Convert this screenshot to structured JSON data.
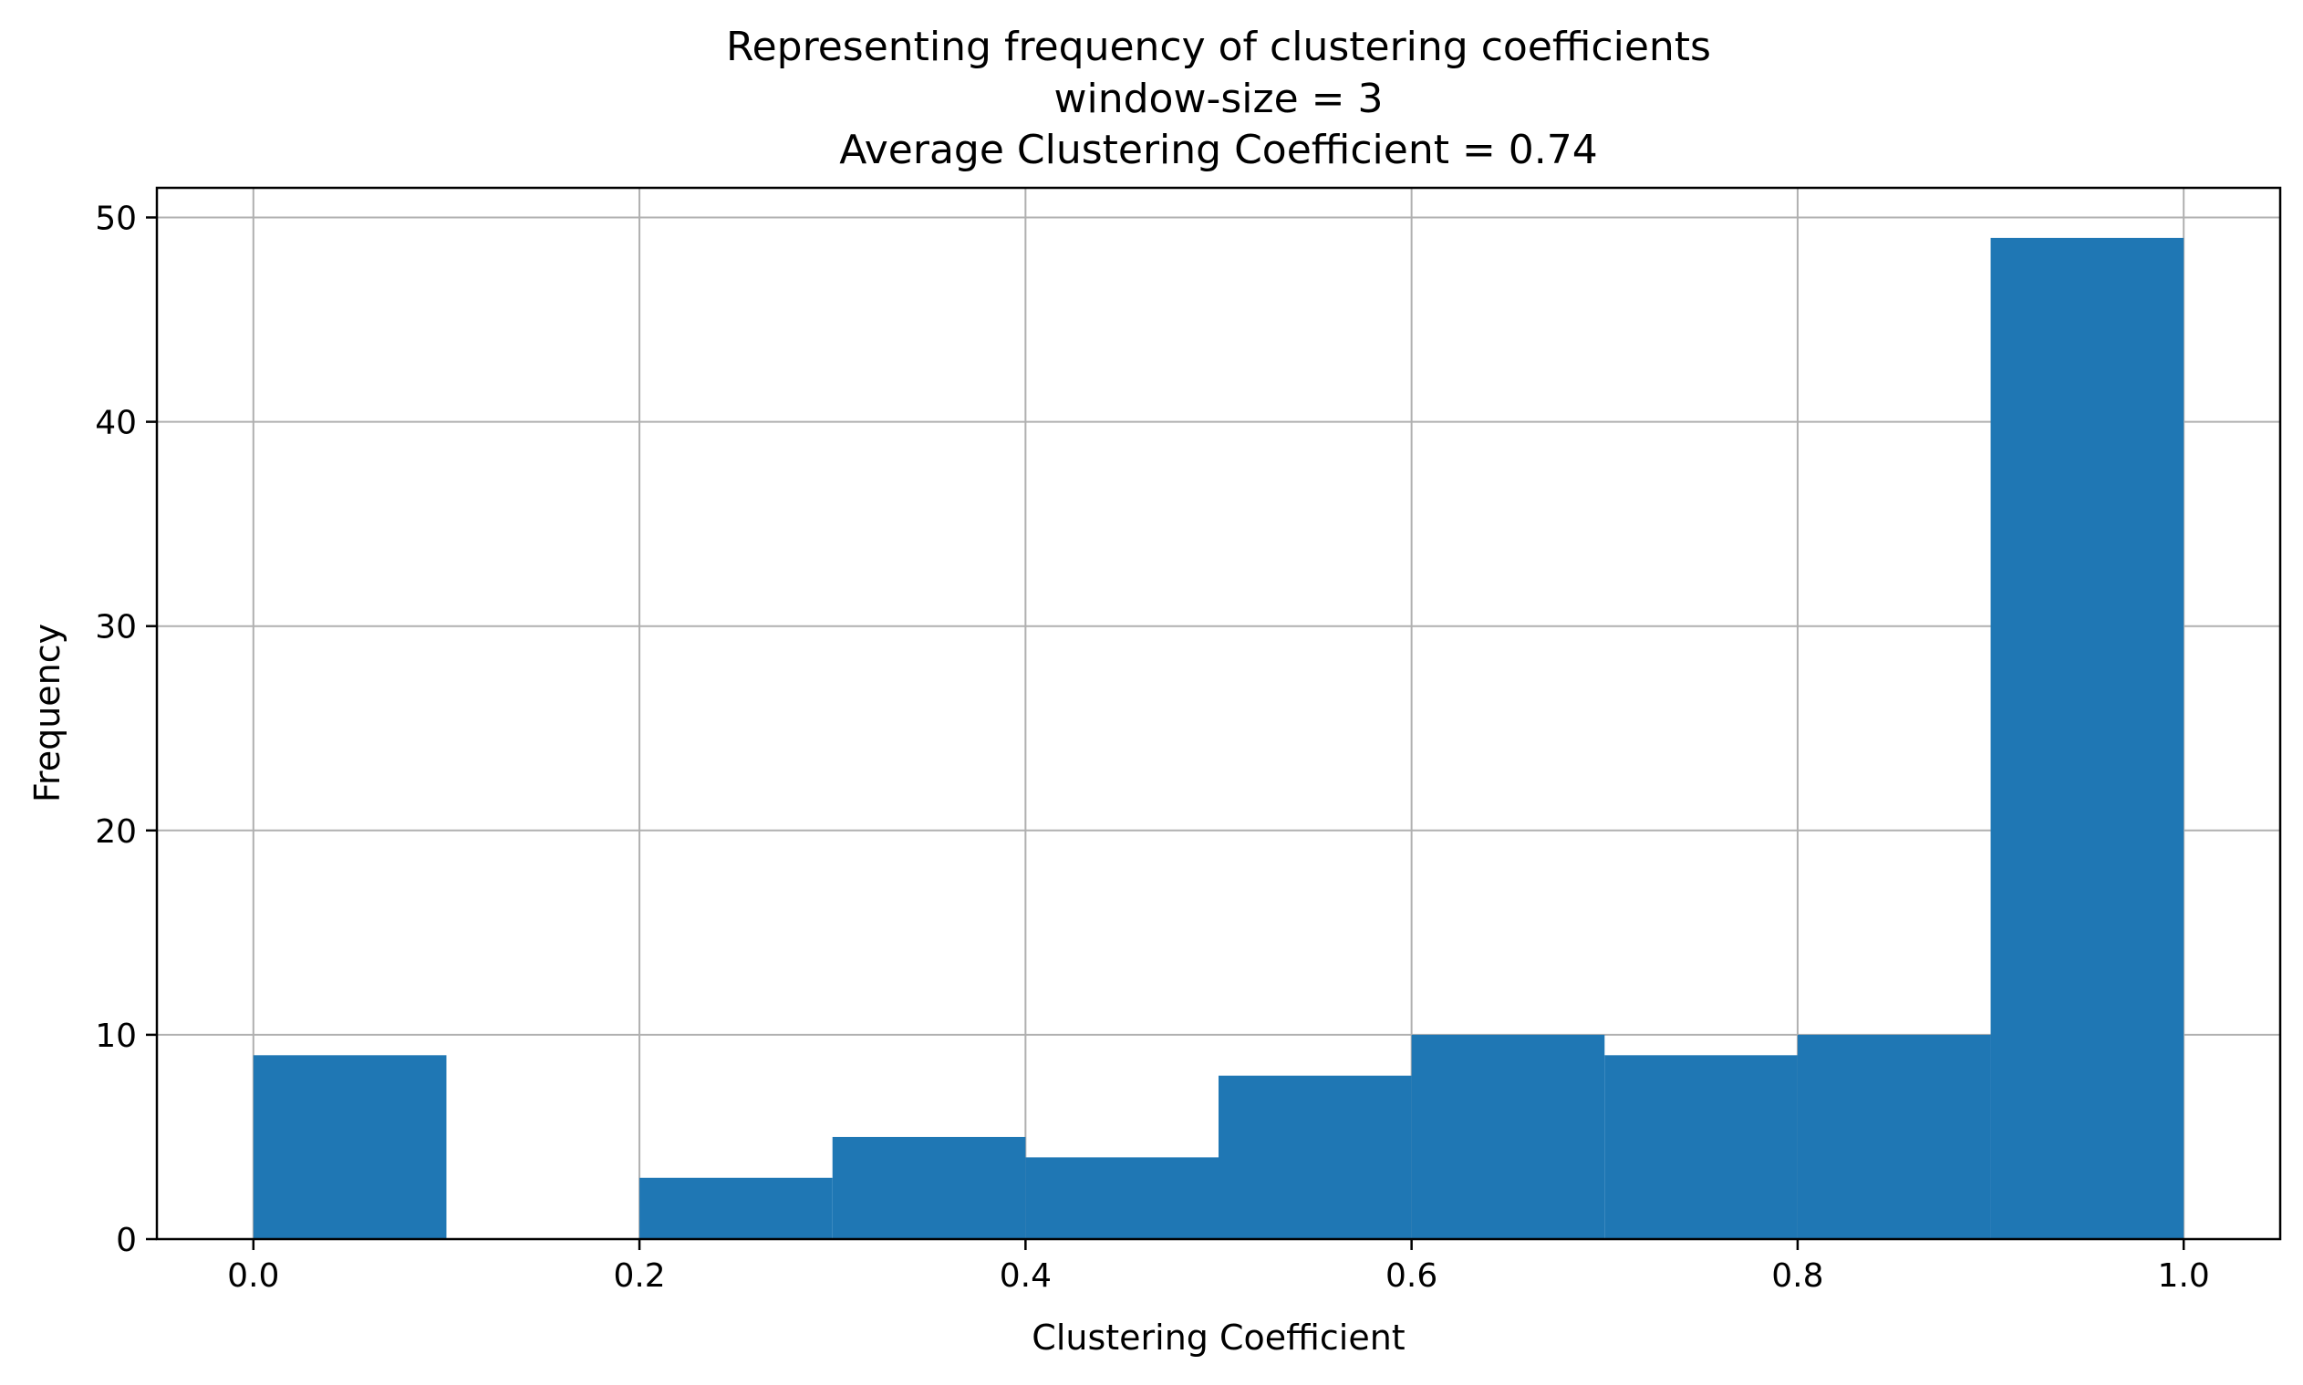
{
  "chart_data": {
    "type": "bar",
    "title_lines": [
      "Representing frequency of clustering coefficients",
      "window-size = 3",
      "Average Clustering Coefficient = 0.74"
    ],
    "xlabel": "Clustering Coefficient",
    "ylabel": "Frequency",
    "xlim": [
      -0.05,
      1.05
    ],
    "ylim": [
      0,
      51.45
    ],
    "xticks": [
      0.0,
      0.2,
      0.4,
      0.6,
      0.8,
      1.0
    ],
    "xtick_labels": [
      "0.0",
      "0.2",
      "0.4",
      "0.6",
      "0.8",
      "1.0"
    ],
    "yticks": [
      0,
      10,
      20,
      30,
      40,
      50
    ],
    "ytick_labels": [
      "0",
      "10",
      "20",
      "30",
      "40",
      "50"
    ],
    "grid": true,
    "bar_color": "#1f77b4",
    "bins": [
      {
        "start": 0.0,
        "end": 0.1,
        "value": 9
      },
      {
        "start": 0.1,
        "end": 0.2,
        "value": 0
      },
      {
        "start": 0.2,
        "end": 0.3,
        "value": 3
      },
      {
        "start": 0.3,
        "end": 0.4,
        "value": 5
      },
      {
        "start": 0.4,
        "end": 0.5,
        "value": 4
      },
      {
        "start": 0.5,
        "end": 0.6,
        "value": 8
      },
      {
        "start": 0.6,
        "end": 0.7,
        "value": 10
      },
      {
        "start": 0.7,
        "end": 0.8,
        "value": 9
      },
      {
        "start": 0.8,
        "end": 0.9,
        "value": 10
      },
      {
        "start": 0.9,
        "end": 1.0,
        "value": 49
      }
    ]
  }
}
